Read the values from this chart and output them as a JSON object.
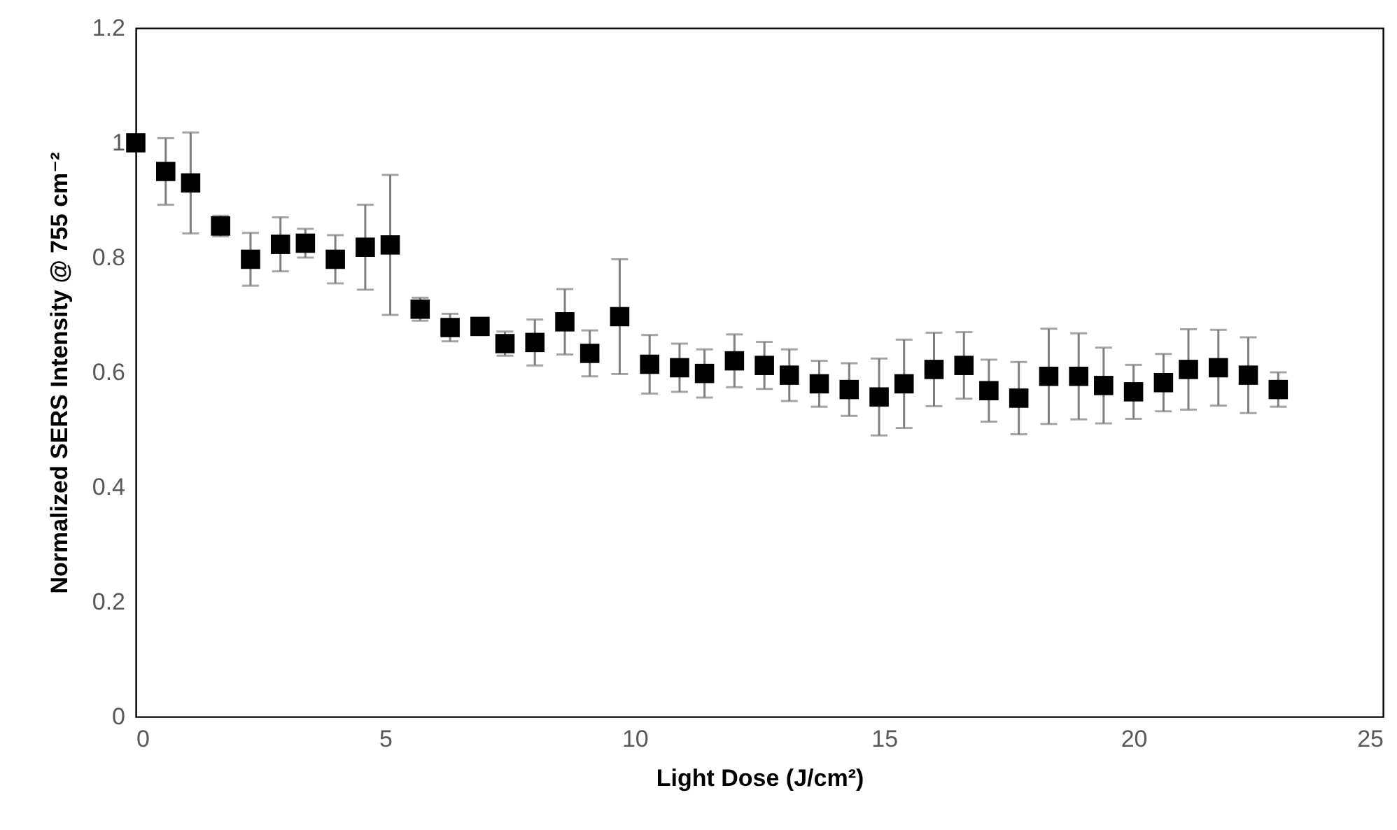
{
  "chart_data": {
    "type": "scatter",
    "xlabel": "Light Dose (J/cm²)",
    "ylabel": "Normalized SERS Intensity @ 755 cm⁻²",
    "x": [
      0,
      0.6,
      1.1,
      1.7,
      2.3,
      2.9,
      3.4,
      4.0,
      4.6,
      5.1,
      5.7,
      6.3,
      6.9,
      7.4,
      8.0,
      8.6,
      9.1,
      9.7,
      10.3,
      10.9,
      11.4,
      12.0,
      12.6,
      13.1,
      13.7,
      14.3,
      14.9,
      15.4,
      16.0,
      16.6,
      17.1,
      17.7,
      18.3,
      18.9,
      19.4,
      20.0,
      20.6,
      21.1,
      21.7,
      22.3,
      22.9
    ],
    "values": [
      1.0,
      0.95,
      0.93,
      0.855,
      0.797,
      0.823,
      0.825,
      0.797,
      0.818,
      0.822,
      0.71,
      0.678,
      0.68,
      0.65,
      0.652,
      0.688,
      0.633,
      0.697,
      0.614,
      0.608,
      0.598,
      0.62,
      0.612,
      0.595,
      0.58,
      0.57,
      0.557,
      0.58,
      0.605,
      0.612,
      0.568,
      0.555,
      0.593,
      0.593,
      0.577,
      0.566,
      0.582,
      0.605,
      0.608,
      0.595,
      0.57
    ],
    "errors": [
      null,
      0.058,
      0.088,
      0.018,
      0.046,
      0.047,
      0.025,
      0.042,
      0.074,
      0.122,
      0.02,
      0.024,
      0.01,
      0.021,
      0.04,
      0.057,
      0.04,
      0.1,
      0.051,
      0.042,
      0.042,
      0.046,
      0.041,
      0.045,
      0.04,
      0.046,
      0.067,
      0.077,
      0.064,
      0.058,
      0.054,
      0.063,
      0.083,
      0.075,
      0.066,
      0.047,
      0.05,
      0.07,
      0.066,
      0.066,
      0.03
    ],
    "color": "#000000",
    "marker": "square",
    "xlim": [
      0,
      25
    ],
    "xticks": [
      0,
      5,
      10,
      15,
      20,
      25
    ],
    "ylim": [
      0,
      1.2
    ],
    "yticks": [
      0,
      0.2,
      0.4,
      0.6,
      0.8,
      1,
      1.2
    ],
    "grid": false
  }
}
